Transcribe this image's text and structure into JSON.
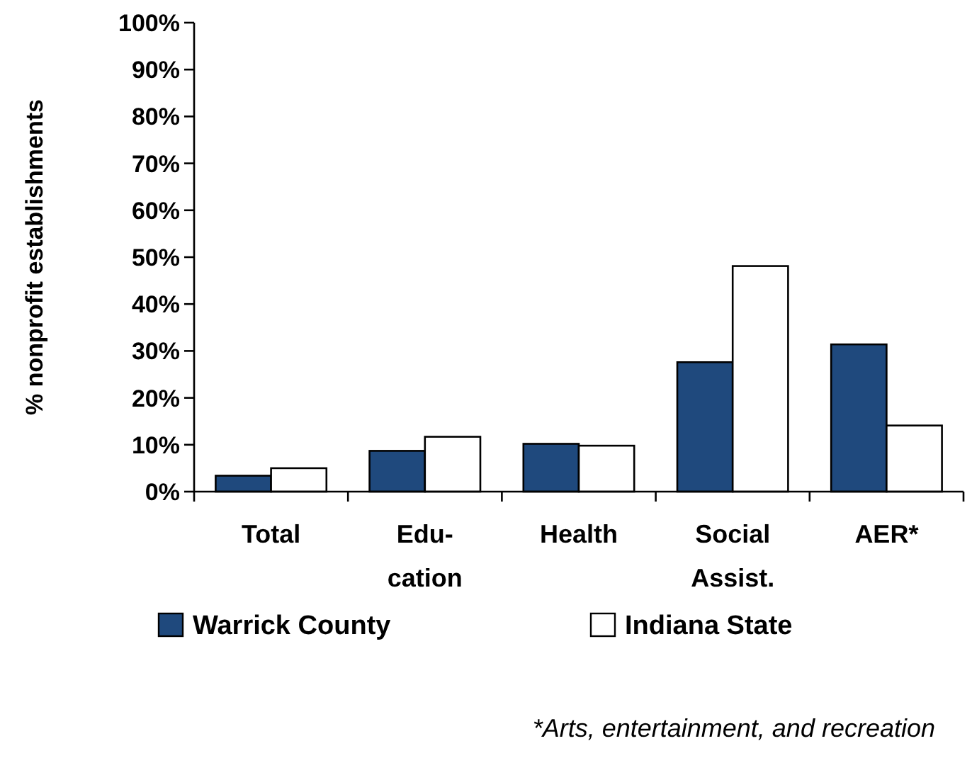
{
  "chart_data": {
    "type": "bar",
    "ylabel": "% nonprofit establishments",
    "categories": [
      "Total",
      "Edu-\ncation",
      "Health",
      "Social\nAssist.",
      "AER*"
    ],
    "series": [
      {
        "name": "Warrick County",
        "color": "#1f497d",
        "values": [
          3.4,
          8.7,
          10.2,
          27.6,
          31.4
        ]
      },
      {
        "name": "Indiana State",
        "color": "#ffffff",
        "values": [
          5.0,
          11.7,
          9.8,
          48.1,
          14.1
        ]
      }
    ],
    "ylim": [
      0,
      100
    ],
    "yticks": [
      {
        "value": 0,
        "label": "0%"
      },
      {
        "value": 10,
        "label": "10%"
      },
      {
        "value": 20,
        "label": "20%"
      },
      {
        "value": 30,
        "label": "30%"
      },
      {
        "value": 40,
        "label": "40%"
      },
      {
        "value": 50,
        "label": "50%"
      },
      {
        "value": 60,
        "label": "60%"
      },
      {
        "value": 70,
        "label": "70%"
      },
      {
        "value": 80,
        "label": "80%"
      },
      {
        "value": 90,
        "label": "90%"
      },
      {
        "value": 100,
        "label": "100%"
      }
    ],
    "grid": false,
    "legend": "bottom",
    "annotations": [
      "*Arts, entertainment, and recreation"
    ]
  }
}
